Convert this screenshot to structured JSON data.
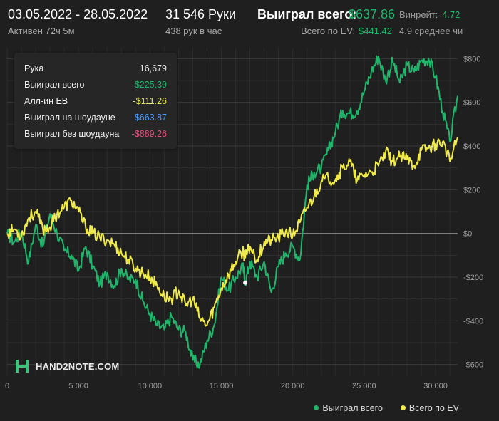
{
  "header": {
    "date_range": "03.05.2022 - 28.05.2022",
    "active": "Активен 72ч 5м",
    "hands_total": "31 546 Руки",
    "hands_per_hour": "438 рук в час",
    "won_total_label": "Выиграл всего:",
    "won_total_value": "$637.86",
    "ev_total_label": "Всего по EV:",
    "ev_total_value": "$441.42",
    "winrate_label": "Винрейт:",
    "winrate_value": "4.72",
    "avg_label": "4.9 среднее чи"
  },
  "info_box": {
    "rows": [
      {
        "label": "Рука",
        "value": "16,679",
        "color": "#e6e6e6"
      },
      {
        "label": "Выиграл всего",
        "value": "-$225.39",
        "color": "#1fb56a"
      },
      {
        "label": "Алл-ин ЕВ",
        "value": "-$111.26",
        "color": "#e8e85a"
      },
      {
        "label": "Выиграл на шоудауне",
        "value": "$663.87",
        "color": "#4a9eff"
      },
      {
        "label": "Выиграл без шоудауна",
        "value": "-$889.26",
        "color": "#e0507a"
      }
    ]
  },
  "logo": {
    "text": "HAND2NOTE.COM"
  },
  "legend": {
    "items": [
      {
        "label": "Выиграл всего",
        "color": "#1fb56a"
      },
      {
        "label": "Всего по EV",
        "color": "#f0ea4a"
      }
    ]
  },
  "chart_data": {
    "type": "line",
    "xlim": [
      0,
      31546
    ],
    "ylim": [
      -650,
      850
    ],
    "x_ticks": [
      0,
      5000,
      10000,
      15000,
      20000,
      25000,
      30000
    ],
    "x_tick_labels": [
      "0",
      "5 000",
      "10 000",
      "15 000",
      "20 000",
      "25 000",
      "30 000"
    ],
    "y_ticks": [
      800,
      600,
      400,
      200,
      0,
      -200,
      -400,
      -600
    ],
    "y_tick_labels": [
      "$800",
      "$600",
      "$400",
      "$200",
      "$0",
      "-$200",
      "-$400",
      "-$600"
    ],
    "grid": true,
    "legend_position": "bottom-right",
    "series": [
      {
        "name": "Выиграл всего",
        "color": "#1fb56a",
        "x": [
          0,
          500,
          1000,
          1500,
          2000,
          2500,
          3000,
          3500,
          4000,
          4500,
          5000,
          5500,
          6000,
          6500,
          7000,
          7500,
          8000,
          8500,
          9000,
          9500,
          10000,
          10500,
          11000,
          11500,
          12000,
          12500,
          13000,
          13500,
          14000,
          14500,
          15000,
          15500,
          16000,
          16500,
          16679,
          17000,
          17500,
          18000,
          18500,
          19000,
          19500,
          20000,
          20500,
          21000,
          21500,
          22000,
          22500,
          23000,
          23500,
          24000,
          24500,
          25000,
          25500,
          26000,
          26500,
          27000,
          27500,
          28000,
          28500,
          29000,
          29500,
          30000,
          30500,
          31000,
          31546
        ],
        "y": [
          0,
          -40,
          10,
          -130,
          40,
          -60,
          90,
          0,
          -80,
          -100,
          -170,
          -60,
          -150,
          -230,
          -180,
          -240,
          -160,
          -210,
          -210,
          -310,
          -370,
          -420,
          -440,
          -380,
          -440,
          -450,
          -580,
          -600,
          -490,
          -420,
          -200,
          -260,
          -200,
          -150,
          -225,
          -130,
          -200,
          -130,
          -270,
          -150,
          -90,
          -60,
          -120,
          220,
          280,
          300,
          380,
          470,
          560,
          550,
          560,
          650,
          740,
          810,
          700,
          790,
          690,
          770,
          740,
          790,
          800,
          720,
          560,
          420,
          630
        ]
      },
      {
        "name": "Всего по EV",
        "color": "#f0ea4a",
        "x": [
          0,
          500,
          1000,
          1500,
          2000,
          2500,
          3000,
          3500,
          4000,
          4500,
          5000,
          5500,
          6000,
          6500,
          7000,
          7500,
          8000,
          8500,
          9000,
          9500,
          10000,
          10500,
          11000,
          11500,
          12000,
          12500,
          13000,
          13500,
          14000,
          14500,
          15000,
          15500,
          16000,
          16500,
          16679,
          17000,
          17500,
          18000,
          18500,
          19000,
          19500,
          20000,
          20500,
          21000,
          21500,
          22000,
          22500,
          23000,
          23500,
          24000,
          24500,
          25000,
          25500,
          26000,
          26500,
          27000,
          27500,
          28000,
          28500,
          29000,
          29500,
          30000,
          30500,
          31000,
          31546
        ],
        "y": [
          0,
          20,
          -10,
          70,
          100,
          20,
          30,
          90,
          120,
          150,
          100,
          30,
          0,
          -20,
          -30,
          -50,
          -90,
          -120,
          -160,
          -180,
          -200,
          -240,
          -290,
          -300,
          -260,
          -330,
          -300,
          -390,
          -420,
          -340,
          -250,
          -190,
          -130,
          -80,
          -111,
          -60,
          -120,
          -40,
          -30,
          -20,
          10,
          -10,
          50,
          120,
          170,
          240,
          250,
          250,
          300,
          330,
          240,
          270,
          280,
          310,
          370,
          330,
          350,
          340,
          310,
          380,
          390,
          410,
          420,
          330,
          440
        ]
      }
    ],
    "marker": {
      "x": 16679,
      "y": -225.39,
      "color": "#ffffff"
    }
  }
}
